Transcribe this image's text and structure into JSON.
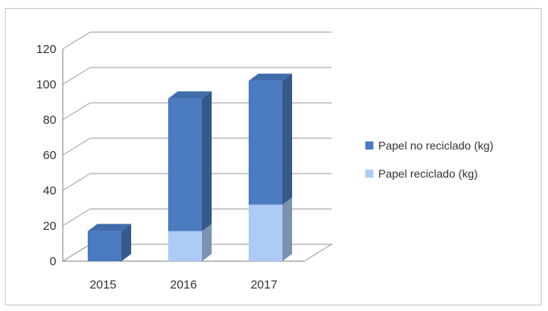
{
  "chart_data": {
    "type": "bar",
    "stacked": true,
    "three_d": true,
    "categories": [
      "2015",
      "2016",
      "2017"
    ],
    "series": [
      {
        "name": "Papel reciclado (kg)",
        "values": [
          0,
          17,
          32
        ],
        "color": "#aecbf5"
      },
      {
        "name": "Papel no reciclado (kg)",
        "values": [
          17,
          75,
          70
        ],
        "color": "#4a7bc1"
      }
    ],
    "ylim": [
      0,
      120
    ],
    "yticks": [
      0,
      20,
      40,
      60,
      80,
      100,
      120
    ],
    "grid": true,
    "legend_position": "right",
    "title": "",
    "xlabel": "",
    "ylabel": ""
  }
}
